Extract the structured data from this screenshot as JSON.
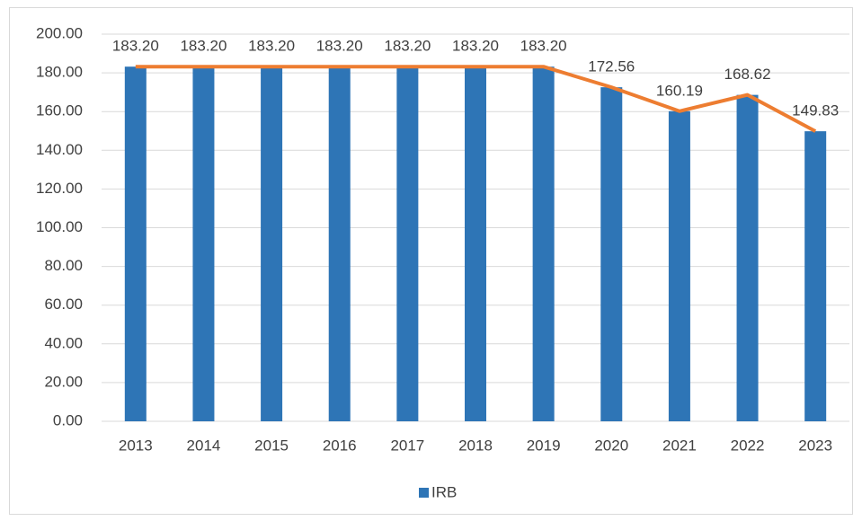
{
  "chart_data": {
    "type": "bar",
    "categories": [
      "2013",
      "2014",
      "2015",
      "2016",
      "2017",
      "2018",
      "2019",
      "2020",
      "2021",
      "2022",
      "2023"
    ],
    "series": [
      {
        "name": "IRB",
        "color": "#2e75b6",
        "values": [
          183.2,
          183.2,
          183.2,
          183.2,
          183.2,
          183.2,
          183.2,
          172.56,
          160.19,
          168.62,
          149.83
        ],
        "value_labels": [
          "183.20",
          "183.20",
          "183.20",
          "183.20",
          "183.20",
          "183.20",
          "183.20",
          "172.56",
          "160.19",
          "168.62",
          "149.83"
        ]
      }
    ],
    "line_overlay_color": "#ed7d31",
    "ylim": [
      0,
      200
    ],
    "yticks": [
      {
        "value": 0,
        "label": "0.00"
      },
      {
        "value": 20,
        "label": "20.00"
      },
      {
        "value": 40,
        "label": "40.00"
      },
      {
        "value": 60,
        "label": "60.00"
      },
      {
        "value": 80,
        "label": "80.00"
      },
      {
        "value": 100,
        "label": "100.00"
      },
      {
        "value": 120,
        "label": "120.00"
      },
      {
        "value": 140,
        "label": "140.00"
      },
      {
        "value": 160,
        "label": "160.00"
      },
      {
        "value": 180,
        "label": "180.00"
      },
      {
        "value": 200,
        "label": "200.00"
      }
    ],
    "grid": true,
    "legend": "bottom"
  }
}
